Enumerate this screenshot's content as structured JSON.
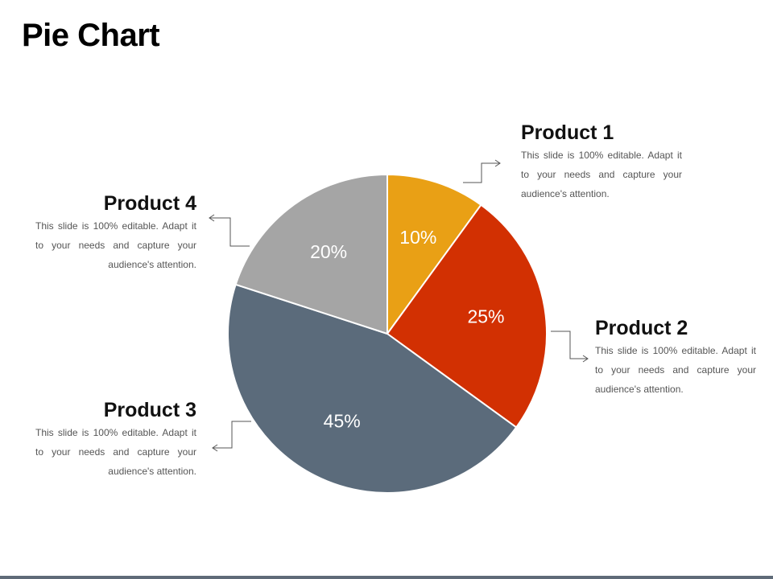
{
  "slide": {
    "title": "Pie Chart"
  },
  "chart_data": {
    "type": "pie",
    "title": "",
    "slices": [
      {
        "name": "Product 1",
        "value": 10,
        "label": "10%",
        "color": "#e9a015"
      },
      {
        "name": "Product 2",
        "value": 25,
        "label": "25%",
        "color": "#d23002"
      },
      {
        "name": "Product 3",
        "value": 45,
        "label": "45%",
        "color": "#5b6b7b"
      },
      {
        "name": "Product 4",
        "value": 20,
        "label": "20%",
        "color": "#a5a5a5"
      }
    ]
  },
  "callouts": [
    {
      "title": "Product 1",
      "desc": "This slide is 100% editable. Adapt it to your needs and capture your audience's attention."
    },
    {
      "title": "Product 2",
      "desc": "This slide is 100% editable. Adapt it to your needs and capture your audience's attention."
    },
    {
      "title": "Product 3",
      "desc": "This slide is 100% editable. Adapt it to your needs and capture your audience's attention."
    },
    {
      "title": "Product 4",
      "desc": "This slide is 100% editable. Adapt it to your needs and capture your audience's attention."
    }
  ],
  "theme": {
    "footer_bar_color": "#5f6b78"
  }
}
